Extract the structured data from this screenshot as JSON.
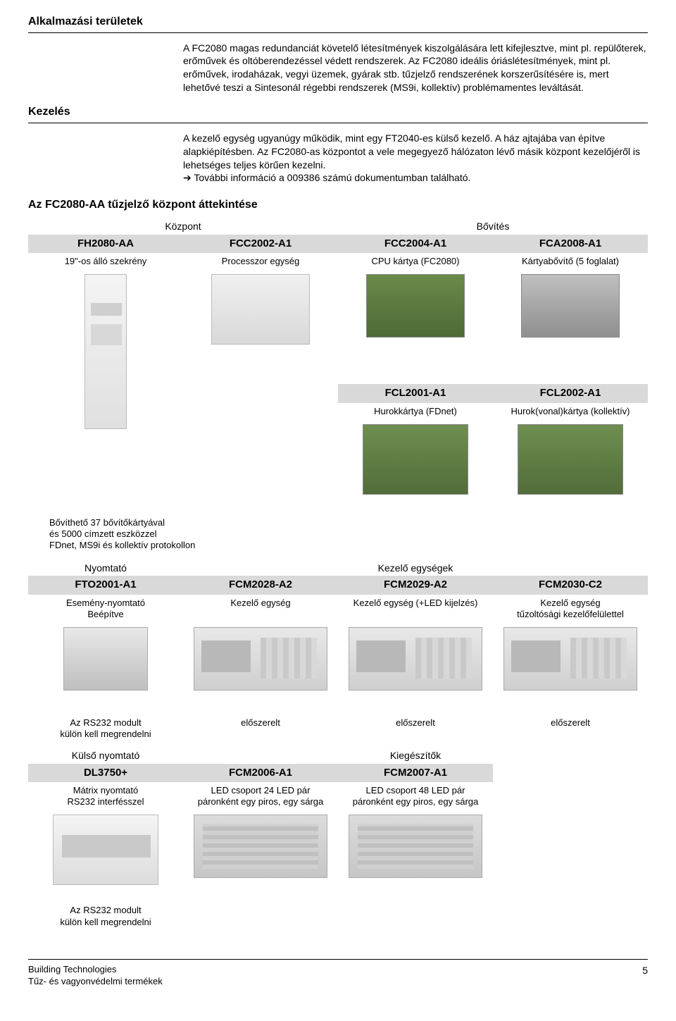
{
  "headings": {
    "applications": "Alkalmazási területek",
    "handling": "Kezelés",
    "overview": "Az FC2080-AA tűzjelző központ áttekintése"
  },
  "paragraphs": {
    "p1": "A FC2080 magas redundanciát követelő létesítmények kiszolgálására lett kifejlesztve, mint pl. repülőterek, erőművek és oltóberendezéssel védett rendszerek. Az FC2080 ideális óriáslétesítmények, mint pl. erőművek, irodaházak, vegyi üzemek, gyárak stb. tűzjelző rendszerének korszerűsítésére is, mert lehetővé teszi a Sintesonál régebbi rendszerek (MS9i, kollektív) problémamentes leváltását.",
    "p2": "A kezelő egység ugyanúgy működik, mint egy FT2040-es külső kezelő. A ház ajtajába van építve alapkiépítésben. Az FC2080-as központot a vele megegyező hálózaton lévő másik központ kezelőjéről is lehetséges teljes körűen kezelni.\n➔ További információ a 009386 számú dokumentumban található."
  },
  "groups": {
    "kozpont": "Központ",
    "bovites": "Bővítés",
    "nyomtato": "Nyomtató",
    "kezelo": "Kezelő egységek",
    "kulso": "Külső nyomtató",
    "kiegeszitok": "Kiegészítők"
  },
  "row1": {
    "c1": {
      "code": "FH2080-AA",
      "desc": "19\"-os álló szekrény"
    },
    "c2": {
      "code": "FCC2002-A1",
      "desc": "Processzor egység"
    },
    "c3": {
      "code": "FCC2004-A1",
      "desc": "CPU kártya (FC2080)"
    },
    "c4": {
      "code": "FCA2008-A1",
      "desc": "Kártyabővítő (5 foglalat)"
    }
  },
  "row2": {
    "c3": {
      "code": "FCL2001-A1",
      "desc": "Hurokkártya (FDnet)"
    },
    "c4": {
      "code": "FCL2002-A1",
      "desc": "Hurok(vonal)kártya (kollektív)"
    }
  },
  "row2caption": "Bővíthető 37 bővítőkártyával\nés 5000 címzett eszközzel\nFDnet, MS9i és kollektív protokollon",
  "row3": {
    "c1": {
      "code": "FTO2001-A1",
      "desc": "Esemény-nyomtató\nBeépítve"
    },
    "c2": {
      "code": "FCM2028-A2",
      "desc": "Kezelő egység"
    },
    "c3": {
      "code": "FCM2029-A2",
      "desc": "Kezelő egység (+LED kijelzés)"
    },
    "c4": {
      "code": "FCM2030-C2",
      "desc": "Kezelő egység\ntűzoltósági kezelőfelülettel"
    }
  },
  "row3notes": {
    "c1": "Az RS232 modult\nkülön kell megrendelni",
    "c2": "előszerelt",
    "c3": "előszerelt",
    "c4": "előszerelt"
  },
  "row4": {
    "c1": {
      "code": "DL3750+",
      "desc": "Mátrix nyomtató\nRS232 interfésszel"
    },
    "c2": {
      "code": "FCM2006-A1",
      "desc": "LED csoport 24 LED pár\npáronként egy piros, egy sárga"
    },
    "c3": {
      "code": "FCM2007-A1",
      "desc": "LED csoport 48 LED pár\npáronként egy piros, egy sárga"
    }
  },
  "row4notes": {
    "c1": "Az RS232 modult\nkülön kell megrendelni"
  },
  "footer": {
    "line1": "Building Technologies",
    "line2": "Tűz- és vagyonvédelmi termékek",
    "page": "5"
  },
  "colors": {
    "header_bg": "#d9d9d9",
    "text": "#000000",
    "rule": "#000000"
  }
}
